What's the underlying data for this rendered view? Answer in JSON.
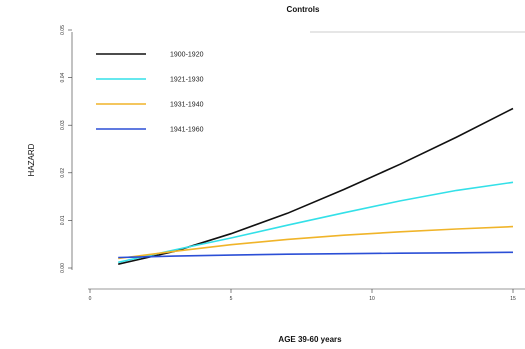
{
  "chart_data": {
    "type": "line",
    "title": "Controls",
    "xlabel": "AGE 39-60 years",
    "ylabel": "HAZARD",
    "xlim": [
      0,
      15
    ],
    "ylim": [
      0,
      0.05
    ],
    "x_ticks": [
      0,
      5,
      10,
      15
    ],
    "x_tick_labels": [
      "0",
      "5",
      "10",
      "15"
    ],
    "y_ticks": [
      0,
      0.01,
      0.02,
      0.03,
      0.04,
      0.05
    ],
    "y_tick_labels": [
      "0.00",
      "0.01",
      "0.02",
      "0.03",
      "0.04",
      "0.05"
    ],
    "grid": false,
    "legend_position": "top-left",
    "x": [
      1,
      3,
      5,
      7,
      9,
      11,
      13,
      15
    ],
    "series": [
      {
        "name": "1900-1920",
        "color": "#111111",
        "values": [
          0.0008,
          0.0035,
          0.0072,
          0.0115,
          0.0165,
          0.0218,
          0.0275,
          0.0335
        ]
      },
      {
        "name": "1921-1930",
        "color": "#33e0e8",
        "values": [
          0.0012,
          0.0038,
          0.0063,
          0.009,
          0.0116,
          0.0141,
          0.0163,
          0.018
        ]
      },
      {
        "name": "1931-1940",
        "color": "#f0b429",
        "values": [
          0.002,
          0.0035,
          0.0049,
          0.006,
          0.0069,
          0.0076,
          0.0082,
          0.0087
        ]
      },
      {
        "name": "1941-1960",
        "color": "#2b4fd6",
        "values": [
          0.0022,
          0.0025,
          0.0027,
          0.0029,
          0.003,
          0.0031,
          0.0032,
          0.0033
        ]
      }
    ]
  }
}
